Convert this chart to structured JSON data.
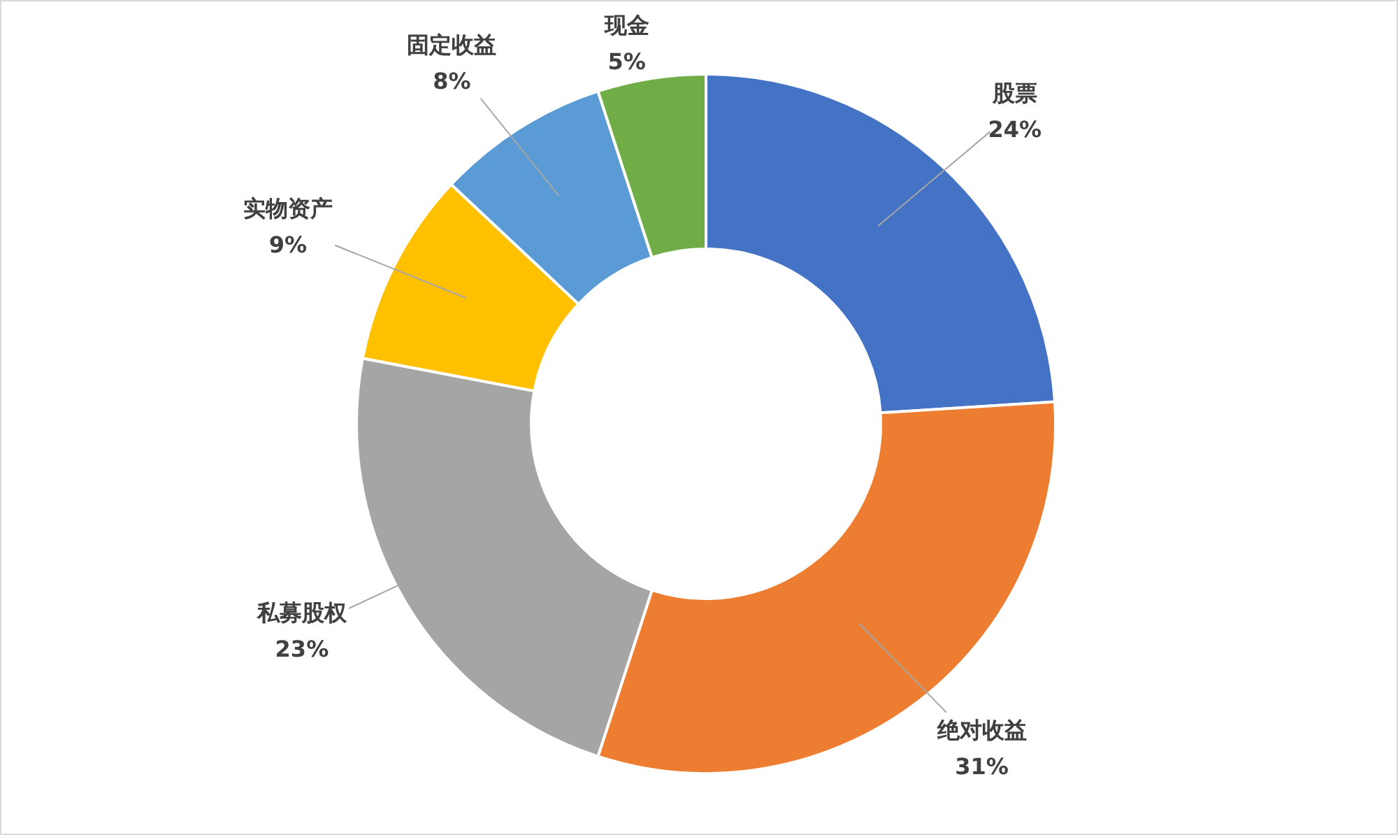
{
  "chart_data": {
    "type": "donut",
    "categories": [
      "股票",
      "绝对收益",
      "私募股权",
      "实物资产",
      "固定收益",
      "现金"
    ],
    "values": [
      24,
      31,
      23,
      9,
      8,
      5
    ],
    "colors": [
      "#4472c4",
      "#ed7d31",
      "#a5a5a5",
      "#ffc000",
      "#5b9bd5",
      "#70ad47"
    ],
    "value_labels": [
      "24%",
      "31%",
      "23%",
      "9%",
      "8%",
      "5%"
    ]
  }
}
